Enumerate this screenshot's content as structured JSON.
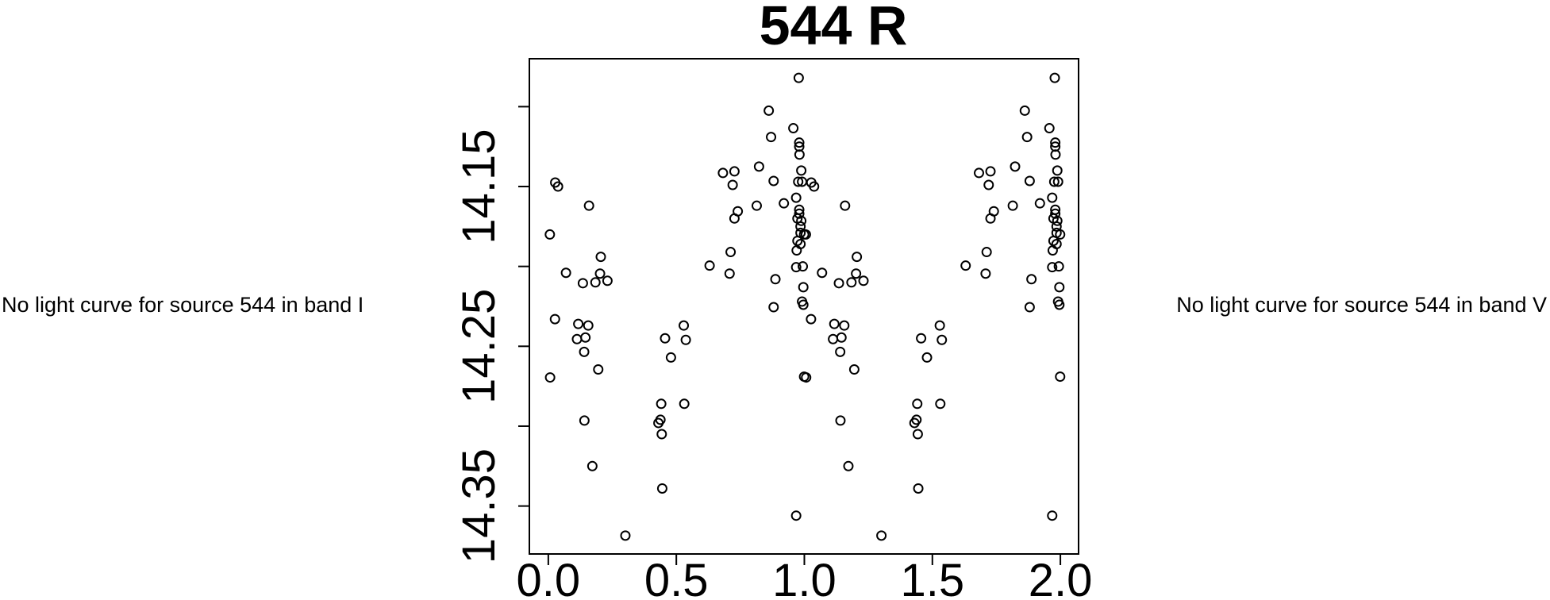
{
  "colors": {
    "ink": "#000000",
    "background": "#ffffff"
  },
  "left_panel": {
    "text": "No light curve for source 544 in band I"
  },
  "right_panel": {
    "text": "No light curve for source 544 in band V"
  },
  "chart_data": {
    "type": "scatter",
    "title": "544 R",
    "xlabel": "",
    "ylabel": "",
    "marker": "open-circle",
    "grid": false,
    "x_axis_note": "phase, data plotted twice (at phase and phase+1)",
    "y_axis_note": "magnitude, axis reversed (brighter up)",
    "xlim": [
      -0.074,
      2.071
    ],
    "ylim": [
      14.38,
      14.07
    ],
    "x_ticks": [
      0.0,
      0.5,
      1.0,
      1.5,
      2.0
    ],
    "x_tick_labels": [
      "0.0",
      "0.5",
      "1.0",
      "1.5",
      "2.0"
    ],
    "y_ticks": [
      14.1,
      14.15,
      14.2,
      14.25,
      14.3,
      14.35
    ],
    "y_tick_labels": [
      "",
      "14.15",
      "",
      "14.25",
      "",
      "14.35"
    ],
    "duplicate_phase_shift": 1,
    "points": [
      [
        0.027,
        14.1475
      ],
      [
        0.038,
        14.15
      ],
      [
        0.159,
        14.162
      ],
      [
        0.978,
        14.082
      ],
      [
        0.861,
        14.1025
      ],
      [
        0.957,
        14.1135
      ],
      [
        0.87,
        14.119
      ],
      [
        0.98,
        14.1225
      ],
      [
        0.98,
        14.125
      ],
      [
        0.981,
        14.13
      ],
      [
        0.823,
        14.1375
      ],
      [
        0.682,
        14.1415
      ],
      [
        0.727,
        14.1405
      ],
      [
        0.988,
        14.14
      ],
      [
        0.72,
        14.149
      ],
      [
        0.88,
        14.1465
      ],
      [
        0.976,
        14.147
      ],
      [
        0.991,
        14.147
      ],
      [
        0.968,
        14.157
      ],
      [
        0.92,
        14.1605
      ],
      [
        0.814,
        14.162
      ],
      [
        0.98,
        14.1645
      ],
      [
        0.98,
        14.167
      ],
      [
        0.74,
        14.1655
      ],
      [
        0.727,
        14.17
      ],
      [
        0.973,
        14.17
      ],
      [
        0.988,
        14.1715
      ],
      [
        0.985,
        14.175
      ],
      [
        0.985,
        14.179
      ],
      [
        0.999,
        14.18
      ],
      [
        0.973,
        14.184
      ],
      [
        0.985,
        14.186
      ],
      [
        0.97,
        14.19
      ],
      [
        0.712,
        14.191
      ],
      [
        0.63,
        14.1995
      ],
      [
        0.968,
        14.2005
      ],
      [
        0.994,
        14.2
      ],
      [
        0.708,
        14.2045
      ],
      [
        0.887,
        14.208
      ],
      [
        0.996,
        14.213
      ],
      [
        0.991,
        14.222
      ],
      [
        0.996,
        14.224
      ],
      [
        0.88,
        14.2255
      ],
      [
        0.529,
        14.237
      ],
      [
        0.537,
        14.246
      ],
      [
        0.479,
        14.257
      ],
      [
        0.999,
        14.269
      ],
      [
        0.006,
        14.18
      ],
      [
        0.205,
        14.194
      ],
      [
        0.069,
        14.204
      ],
      [
        0.202,
        14.2045
      ],
      [
        0.135,
        14.2105
      ],
      [
        0.184,
        14.21
      ],
      [
        0.231,
        14.209
      ],
      [
        0.026,
        14.233
      ],
      [
        0.117,
        14.236
      ],
      [
        0.156,
        14.237
      ],
      [
        0.112,
        14.2455
      ],
      [
        0.145,
        14.2445
      ],
      [
        0.14,
        14.2535
      ],
      [
        0.195,
        14.2645
      ],
      [
        0.007,
        14.2695
      ],
      [
        0.456,
        14.245
      ],
      [
        0.141,
        14.2965
      ],
      [
        0.441,
        14.286
      ],
      [
        0.43,
        14.298
      ],
      [
        0.438,
        14.296
      ],
      [
        0.443,
        14.305
      ],
      [
        0.172,
        14.325
      ],
      [
        0.445,
        14.339
      ],
      [
        0.301,
        14.3685
      ],
      [
        0.531,
        14.286
      ],
      [
        0.968,
        14.356
      ]
    ]
  }
}
